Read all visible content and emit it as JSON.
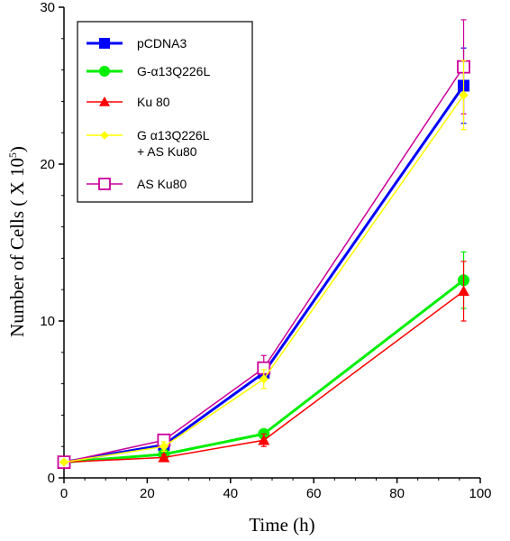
{
  "chart_data": {
    "type": "line",
    "xlabel": "Time (h)",
    "ylabel": "Number of Cells ( X 10",
    "ylabel_superscript": "5",
    "ylabel_suffix": ")",
    "xlim": [
      0,
      100
    ],
    "ylim": [
      0,
      30
    ],
    "x_ticks": [
      0,
      20,
      40,
      60,
      80,
      100
    ],
    "y_ticks": [
      0,
      10,
      20,
      30
    ],
    "grid": false,
    "legend_position": "top-left",
    "x": [
      0,
      24,
      48,
      96
    ],
    "series": [
      {
        "name": "pCDNA3",
        "color": "#0000ff",
        "marker": "square",
        "values": [
          1.0,
          2.1,
          6.7,
          25.0
        ],
        "errors": [
          0,
          0.3,
          0.5,
          2.4
        ]
      },
      {
        "name": "G-α13Q226L",
        "color": "#00ee00",
        "marker": "circle",
        "values": [
          1.0,
          1.5,
          2.8,
          12.6
        ],
        "errors": [
          0,
          0.2,
          0.3,
          1.8
        ]
      },
      {
        "name": "Ku 80",
        "color": "#ff0000",
        "marker": "triangle",
        "values": [
          1.0,
          1.3,
          2.4,
          11.9
        ],
        "errors": [
          0,
          0.2,
          0.4,
          1.9
        ]
      },
      {
        "name": "G α13Q226L",
        "name_line2": "+ AS Ku80",
        "color": "#ffff00",
        "marker": "diamond",
        "values": [
          1.0,
          2.0,
          6.3,
          24.4
        ],
        "errors": [
          0,
          0.3,
          0.6,
          2.2
        ]
      },
      {
        "name": "AS Ku80",
        "color": "#cc0099",
        "marker": "open-square",
        "values": [
          1.0,
          2.4,
          7.0,
          26.2
        ],
        "errors": [
          0,
          0.3,
          0.8,
          3.0
        ]
      }
    ]
  }
}
